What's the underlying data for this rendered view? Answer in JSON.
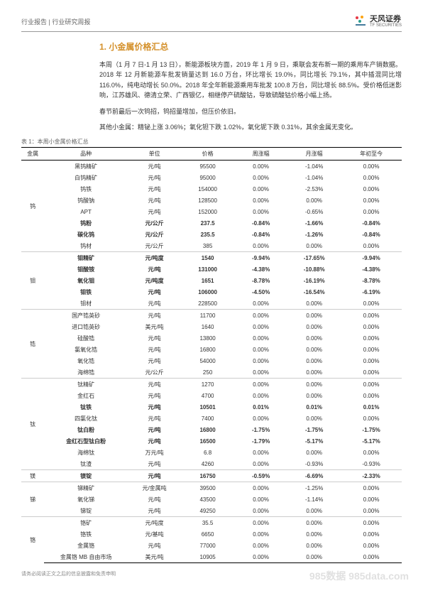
{
  "header": {
    "left": "行业报告 | 行业研究周报",
    "logo_main": "天风证券",
    "logo_sub": "TF SECURITIES"
  },
  "section_title": "1. 小金属价格汇总",
  "paragraphs": [
    "本周（1 月 7 日-1 月 13 日），新能源板块方面，2019 年 1 月 9 日，乘联会发布新一期的乘用车产销数据。2018 年 12 月新能源车批发销量达到 16.0 万台，环比增长 19.0%，同比增长 79.1%，其中插混同比增 116.0%，纯电动增长 50.0%。2018 年全年新能源乘用车批发 100.8 万台，同比增长 88.5%。受价格低迷影响，江苏雄风、德清立荣、广西银亿，相继停产硫酸钴，导致硫酸钴价格小幅上扬。",
    "春节前最后一次钨招，钨招量增加，但压价依旧。",
    "其他小金属：精铋上涨 3.06%；氧化钽下跌 1.02%，氧化铌下跌 0.31%，其余金属无变化。"
  ],
  "table_caption": "表 1：本周小金属价格汇总",
  "table": {
    "columns": [
      "金属",
      "品种",
      "单位",
      "价格",
      "周涨幅",
      "月涨幅",
      "年初至今"
    ],
    "col_widths": [
      "6%",
      "22%",
      "14%",
      "14%",
      "14%",
      "14%",
      "16%"
    ],
    "groups": [
      {
        "metal": "钨",
        "rows": [
          {
            "c": [
              "黑钨精矿",
              "元/吨",
              "95500",
              "0.00%",
              "-1.04%",
              "0.00%"
            ],
            "b": false
          },
          {
            "c": [
              "白钨精矿",
              "元/吨",
              "95000",
              "0.00%",
              "-1.04%",
              "0.00%"
            ],
            "b": false
          },
          {
            "c": [
              "钨铁",
              "元/吨",
              "154000",
              "0.00%",
              "-2.53%",
              "0.00%"
            ],
            "b": false
          },
          {
            "c": [
              "钨酸钠",
              "元/吨",
              "128500",
              "0.00%",
              "0.00%",
              "0.00%"
            ],
            "b": false
          },
          {
            "c": [
              "APT",
              "元/吨",
              "152000",
              "0.00%",
              "-0.65%",
              "0.00%"
            ],
            "b": false
          },
          {
            "c": [
              "钨粉",
              "元/公斤",
              "237.5",
              "-0.84%",
              "-1.66%",
              "-0.84%"
            ],
            "b": true
          },
          {
            "c": [
              "碳化钨",
              "元/公斤",
              "235.5",
              "-0.84%",
              "-1.26%",
              "-0.84%"
            ],
            "b": true
          },
          {
            "c": [
              "钨材",
              "元/公斤",
              "385",
              "0.00%",
              "0.00%",
              "0.00%"
            ],
            "b": false
          }
        ]
      },
      {
        "metal": "钼",
        "rows": [
          {
            "c": [
              "钼精矿",
              "元/吨度",
              "1540",
              "-9.94%",
              "-17.65%",
              "-9.94%"
            ],
            "b": true
          },
          {
            "c": [
              "钼酸铵",
              "元/吨",
              "131000",
              "-4.38%",
              "-10.88%",
              "-4.38%"
            ],
            "b": true
          },
          {
            "c": [
              "氧化钼",
              "元/吨度",
              "1651",
              "-8.78%",
              "-16.19%",
              "-8.78%"
            ],
            "b": true
          },
          {
            "c": [
              "钼铁",
              "元/吨",
              "106000",
              "-4.50%",
              "-16.54%",
              "-6.19%"
            ],
            "b": true
          },
          {
            "c": [
              "钼材",
              "元/吨",
              "228500",
              "0.00%",
              "0.00%",
              "0.00%"
            ],
            "b": false
          }
        ]
      },
      {
        "metal": "锆",
        "rows": [
          {
            "c": [
              "国产锆英砂",
              "元/吨",
              "11700",
              "0.00%",
              "0.00%",
              "0.00%"
            ],
            "b": false
          },
          {
            "c": [
              "进口锆英砂",
              "美元/吨",
              "1640",
              "0.00%",
              "0.00%",
              "0.00%"
            ],
            "b": false
          },
          {
            "c": [
              "硅酸锆",
              "元/吨",
              "13800",
              "0.00%",
              "0.00%",
              "0.00%"
            ],
            "b": false
          },
          {
            "c": [
              "氯氧化锆",
              "元/吨",
              "16800",
              "0.00%",
              "0.00%",
              "0.00%"
            ],
            "b": false
          },
          {
            "c": [
              "氧化锆",
              "元/吨",
              "54000",
              "0.00%",
              "0.00%",
              "0.00%"
            ],
            "b": false
          },
          {
            "c": [
              "海绵锆",
              "元/公斤",
              "250",
              "0.00%",
              "0.00%",
              "0.00%"
            ],
            "b": false
          }
        ]
      },
      {
        "metal": "钛",
        "rows": [
          {
            "c": [
              "钛精矿",
              "元/吨",
              "1270",
              "0.00%",
              "0.00%",
              "0.00%"
            ],
            "b": false
          },
          {
            "c": [
              "金红石",
              "元/吨",
              "4700",
              "0.00%",
              "0.00%",
              "0.00%"
            ],
            "b": false
          },
          {
            "c": [
              "钛铁",
              "元/吨",
              "10501",
              "0.01%",
              "0.01%",
              "0.01%"
            ],
            "b": true
          },
          {
            "c": [
              "四氯化钛",
              "元/吨",
              "7400",
              "0.00%",
              "0.00%",
              "0.00%"
            ],
            "b": false
          },
          {
            "c": [
              "钛白粉",
              "元/吨",
              "16800",
              "-1.75%",
              "-1.75%",
              "-1.75%"
            ],
            "b": true
          },
          {
            "c": [
              "金红石型钛白粉",
              "元/吨",
              "16500",
              "-1.79%",
              "-5.17%",
              "-5.17%"
            ],
            "b": true
          },
          {
            "c": [
              "海绵钛",
              "万元/吨",
              "6.8",
              "0.00%",
              "0.00%",
              "0.00%"
            ],
            "b": false
          },
          {
            "c": [
              "钛渣",
              "元/吨",
              "4260",
              "0.00%",
              "-0.93%",
              "-0.93%"
            ],
            "b": false
          }
        ]
      },
      {
        "metal": "镁",
        "rows": [
          {
            "c": [
              "镁锭",
              "元/吨",
              "16750",
              "-0.59%",
              "-6.69%",
              "-2.33%"
            ],
            "b": true
          }
        ]
      },
      {
        "metal": "锑",
        "rows": [
          {
            "c": [
              "锑精矿",
              "元/金属吨",
              "39500",
              "0.00%",
              "-1.25%",
              "0.00%"
            ],
            "b": false
          },
          {
            "c": [
              "氧化锑",
              "元/吨",
              "43500",
              "0.00%",
              "-1.14%",
              "0.00%"
            ],
            "b": false
          },
          {
            "c": [
              "锑锭",
              "元/吨",
              "49250",
              "0.00%",
              "0.00%",
              "0.00%"
            ],
            "b": false
          }
        ]
      },
      {
        "metal": "铬",
        "rows": [
          {
            "c": [
              "铬矿",
              "元/吨度",
              "35.5",
              "0.00%",
              "0.00%",
              "0.00%"
            ],
            "b": false
          },
          {
            "c": [
              "铬铁",
              "元/基吨",
              "6650",
              "0.00%",
              "0.00%",
              "0.00%"
            ],
            "b": false
          },
          {
            "c": [
              "金属铬",
              "元/吨",
              "77000",
              "0.00%",
              "0.00%",
              "0.00%"
            ],
            "b": false
          },
          {
            "c": [
              "金属铬 MB 自由市场",
              "美元/吨",
              "10905",
              "0.00%",
              "0.00%",
              "0.00%"
            ],
            "b": false
          }
        ]
      }
    ]
  },
  "footer": "请务必阅读正文之后的信息披露和免责申明",
  "watermark": "985数据 985data.com"
}
